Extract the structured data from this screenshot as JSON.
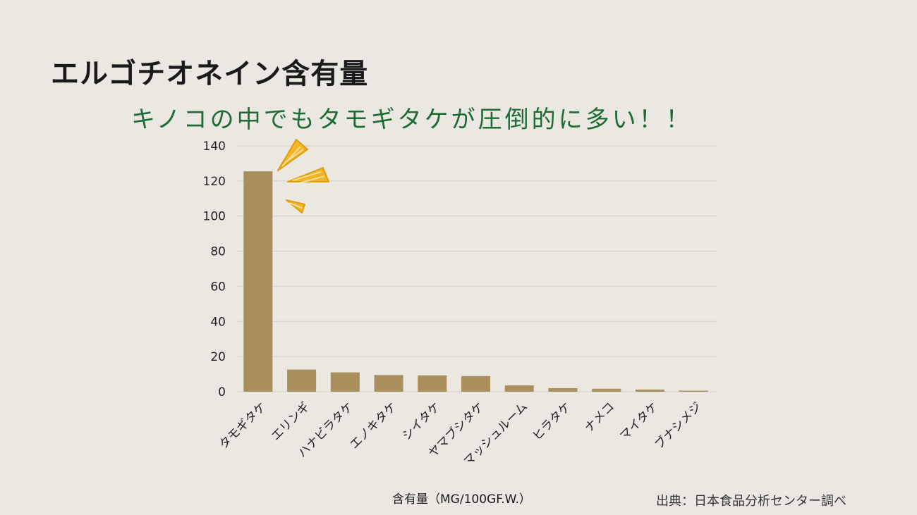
{
  "title": "エルゴチオネイン含有量",
  "subtitle": "キノコの中でもタモギタケが圧倒的に多い！！",
  "source": "出典：日本食品分析センター調べ",
  "colors": {
    "bar": "#a88f5c",
    "grid": "#d3cfc6",
    "title": "#1a1a1a",
    "subtitle": "#1d6b35",
    "accent": "#f2b526"
  },
  "decoration": "yellow-emphasis-marks-icon",
  "chart_data": {
    "type": "bar",
    "categories": [
      "タモギタケ",
      "エリンギ",
      "ハナビラタケ",
      "エノキタケ",
      "シイタケ",
      "ヤマブシタケ",
      "マッシュルーム",
      "ヒラタケ",
      "ナメコ",
      "マイタケ",
      "ブナシメジ"
    ],
    "values": [
      125.5,
      12.6,
      11.0,
      9.5,
      9.3,
      8.9,
      3.6,
      2.0,
      1.7,
      1.2,
      0.6
    ],
    "xlabel": "含有量（MG/100GF.W.）",
    "ylabel": "",
    "ylim": [
      0,
      140
    ],
    "yticks": [
      0,
      20,
      40,
      60,
      80,
      100,
      120,
      140
    ],
    "grid": true,
    "legend": "none"
  }
}
